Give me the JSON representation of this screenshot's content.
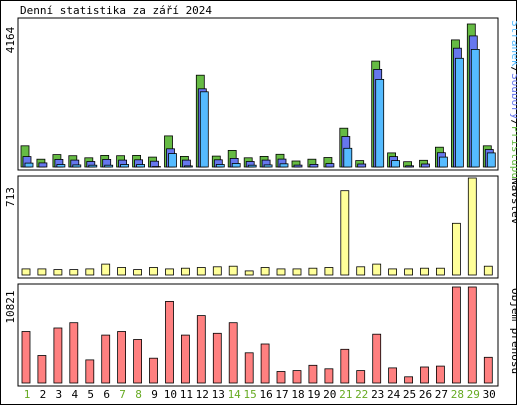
{
  "title": "Denní statistika za září 2024",
  "colors": {
    "hits": "#66bb44",
    "files": "#6677ee",
    "pages": "#55bbff",
    "visits": "#ffff99",
    "traffic": "#ff8080",
    "weekday": "#000000",
    "weekend": "#66aa22"
  },
  "chart_data": [
    {
      "type": "bar",
      "id": "hits-files-pages",
      "ymax_label": "4164",
      "ylim": [
        0,
        4164
      ],
      "legend": [
        {
          "name": "Stránek",
          "color": "#55bbff"
        },
        {
          "name": "/",
          "color": "#000000"
        },
        {
          "name": "Soubory",
          "color": "#6677ee"
        },
        {
          "name": "/",
          "color": "#000000"
        },
        {
          "name": "Přístupů",
          "color": "#66bb44"
        }
      ],
      "categories": [
        "1",
        "2",
        "3",
        "4",
        "5",
        "6",
        "7",
        "8",
        "9",
        "10",
        "11",
        "12",
        "13",
        "14",
        "15",
        "16",
        "17",
        "18",
        "19",
        "20",
        "21",
        "22",
        "23",
        "24",
        "25",
        "26",
        "27",
        "28",
        "29",
        "30"
      ],
      "series": [
        {
          "name": "Přístupů",
          "values": [
            600,
            220,
            350,
            320,
            260,
            330,
            320,
            330,
            280,
            880,
            300,
            2600,
            310,
            470,
            260,
            300,
            360,
            170,
            220,
            270,
            1100,
            180,
            3000,
            400,
            150,
            190,
            560,
            3600,
            4050,
            600
          ]
        },
        {
          "name": "Soubory",
          "values": [
            380,
            200,
            300,
            280,
            240,
            300,
            280,
            290,
            250,
            600,
            280,
            2300,
            290,
            330,
            240,
            280,
            310,
            140,
            160,
            180,
            950,
            170,
            2850,
            380,
            120,
            170,
            490,
            3450,
            3800,
            580
          ]
        },
        {
          "name": "Stránek",
          "values": [
            280,
            150,
            240,
            230,
            220,
            220,
            240,
            240,
            180,
            550,
            200,
            2300,
            240,
            270,
            220,
            230,
            260,
            110,
            130,
            130,
            700,
            130,
            2650,
            350,
            100,
            140,
            450,
            3250,
            3500,
            570
          ]
        }
      ]
    },
    {
      "type": "bar",
      "id": "visits",
      "ymax_label": "713",
      "ylim": [
        0,
        713
      ],
      "legend": [
        {
          "name": "Návštěv",
          "color": "#aacc33"
        }
      ],
      "categories": [
        "1",
        "2",
        "3",
        "4",
        "5",
        "6",
        "7",
        "8",
        "9",
        "10",
        "11",
        "12",
        "13",
        "14",
        "15",
        "16",
        "17",
        "18",
        "19",
        "20",
        "21",
        "22",
        "23",
        "24",
        "25",
        "26",
        "27",
        "28",
        "29",
        "30"
      ],
      "series": [
        {
          "name": "Návštěv",
          "values": [
            45,
            45,
            40,
            40,
            45,
            80,
            55,
            40,
            55,
            45,
            50,
            55,
            60,
            65,
            30,
            55,
            45,
            45,
            50,
            55,
            620,
            60,
            80,
            45,
            45,
            50,
            50,
            380,
            713,
            65
          ]
        }
      ]
    },
    {
      "type": "bar",
      "id": "traffic",
      "ymax_label": "10821",
      "ylim": [
        0,
        10821
      ],
      "legend": [
        {
          "name": "Objem přenosu",
          "color": "#ff8080"
        }
      ],
      "categories": [
        "1",
        "2",
        "3",
        "4",
        "5",
        "6",
        "7",
        "8",
        "9",
        "10",
        "11",
        "12",
        "13",
        "14",
        "15",
        "16",
        "17",
        "18",
        "19",
        "20",
        "21",
        "22",
        "23",
        "24",
        "25",
        "26",
        "27",
        "28",
        "29",
        "30"
      ],
      "series": [
        {
          "name": "Objem přenosu",
          "values": [
            5800,
            3100,
            6200,
            6800,
            2600,
            5400,
            5800,
            4900,
            2800,
            9200,
            5400,
            7600,
            5600,
            6800,
            3400,
            4400,
            1300,
            1400,
            2000,
            1600,
            3800,
            1400,
            5500,
            1700,
            700,
            1800,
            1900,
            10821,
            10821,
            2900
          ]
        }
      ]
    }
  ],
  "days": [
    {
      "label": "1",
      "weekend": true
    },
    {
      "label": "2",
      "weekend": false
    },
    {
      "label": "3",
      "weekend": false
    },
    {
      "label": "4",
      "weekend": false
    },
    {
      "label": "5",
      "weekend": false
    },
    {
      "label": "6",
      "weekend": false
    },
    {
      "label": "7",
      "weekend": true
    },
    {
      "label": "8",
      "weekend": true
    },
    {
      "label": "9",
      "weekend": false
    },
    {
      "label": "10",
      "weekend": false
    },
    {
      "label": "11",
      "weekend": false
    },
    {
      "label": "12",
      "weekend": false
    },
    {
      "label": "13",
      "weekend": false
    },
    {
      "label": "14",
      "weekend": true
    },
    {
      "label": "15",
      "weekend": true
    },
    {
      "label": "16",
      "weekend": false
    },
    {
      "label": "17",
      "weekend": false
    },
    {
      "label": "18",
      "weekend": false
    },
    {
      "label": "19",
      "weekend": false
    },
    {
      "label": "20",
      "weekend": false
    },
    {
      "label": "21",
      "weekend": true
    },
    {
      "label": "22",
      "weekend": true
    },
    {
      "label": "23",
      "weekend": false
    },
    {
      "label": "24",
      "weekend": false
    },
    {
      "label": "25",
      "weekend": false
    },
    {
      "label": "26",
      "weekend": false
    },
    {
      "label": "27",
      "weekend": false
    },
    {
      "label": "28",
      "weekend": true
    },
    {
      "label": "29",
      "weekend": true
    },
    {
      "label": "30",
      "weekend": false
    }
  ]
}
